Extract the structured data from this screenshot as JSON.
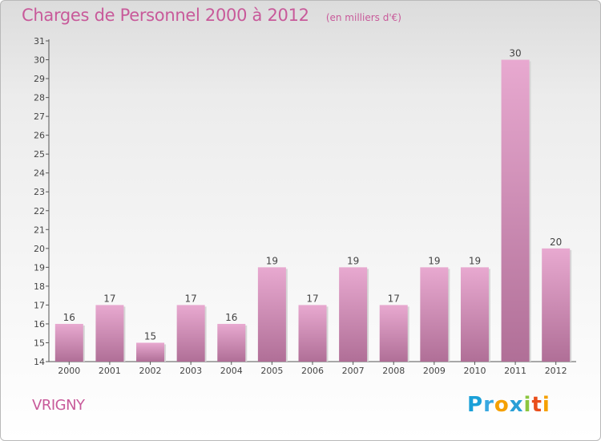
{
  "header": {
    "title": "Charges de Personnel 2000 à 2012",
    "subtitle": "(en milliers d'€)"
  },
  "place": "VRIGNY",
  "logo": {
    "text": "Proxiti"
  },
  "colors": {
    "bar_top": "#e8a9d0",
    "bar_bottom": "#b06f97",
    "title": "#c85a9a"
  },
  "chart_data": {
    "type": "bar",
    "categories": [
      "2000",
      "2001",
      "2002",
      "2003",
      "2004",
      "2005",
      "2006",
      "2007",
      "2008",
      "2009",
      "2010",
      "2011",
      "2012"
    ],
    "values": [
      16,
      17,
      15,
      17,
      16,
      19,
      17,
      19,
      17,
      19,
      19,
      30,
      20
    ],
    "title": "Charges de Personnel 2000 à 2012",
    "subtitle": "(en milliers d'€)",
    "xlabel": "",
    "ylabel": "",
    "ylim": [
      14,
      31
    ],
    "yticks": [
      14,
      15,
      16,
      17,
      18,
      19,
      20,
      21,
      22,
      23,
      24,
      25,
      26,
      27,
      28,
      29,
      30,
      31
    ],
    "grid": false,
    "data_labels": true
  }
}
